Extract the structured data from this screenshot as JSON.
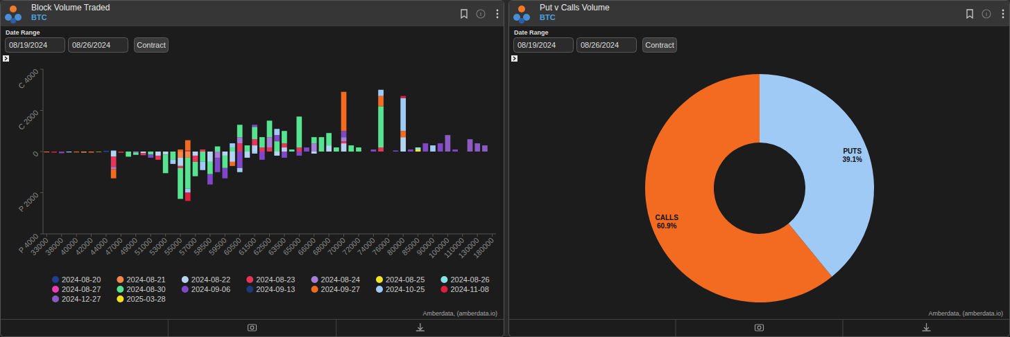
{
  "chart_data": [
    {
      "type": "bar",
      "title": "Block Volume Traded",
      "subtitle": "BTC",
      "annotations": [
        "Date Range",
        "08/19/2024",
        "08/26/2024",
        "Contract",
        "Amberdata, (amberdata.io)"
      ],
      "stacked": true,
      "grid": false,
      "legend": "bottom",
      "categories": [
        "33000",
        null,
        "38000",
        null,
        "40000",
        null,
        "42000",
        null,
        "44000",
        null,
        "47000",
        null,
        "49000",
        null,
        "51000",
        null,
        "53000",
        null,
        "55000",
        null,
        "57000",
        null,
        "58500",
        null,
        "59500",
        null,
        "60500",
        null,
        "61500",
        null,
        "62500",
        null,
        "63500",
        null,
        "65000",
        null,
        "66000",
        null,
        "68000",
        null,
        "70000",
        null,
        "72000",
        null,
        "74000",
        null,
        "76000",
        null,
        "80000",
        null,
        "85000",
        null,
        "90000",
        null,
        "100000",
        null,
        "110000",
        null,
        "130000",
        null,
        "180000"
      ],
      "ylim": [
        -4000,
        4000
      ],
      "yticks": [
        {
          "value": 4000,
          "label": "C 4000"
        },
        {
          "value": 2000,
          "label": "C 2000"
        },
        0,
        {
          "value": -2000,
          "label": "P 2000"
        },
        {
          "value": -4000,
          "label": "P 4000"
        }
      ],
      "series": [
        {
          "name": "2024-08-20",
          "color": "#1f3f8f",
          "values": [
            0,
            0,
            0,
            0,
            0,
            0,
            0,
            0,
            40,
            0,
            0,
            0,
            0,
            0,
            0,
            0,
            0,
            0,
            0,
            0,
            0,
            0,
            0,
            0,
            0,
            0,
            0,
            0,
            0,
            0,
            0,
            0,
            0,
            0,
            0,
            0,
            0,
            0,
            0,
            0,
            0,
            0,
            0,
            0,
            0,
            0,
            0,
            0,
            0,
            0,
            0,
            0,
            0,
            0,
            0,
            0,
            0,
            0,
            0,
            0,
            0
          ]
        },
        {
          "name": "2024-08-21",
          "color": "#f4874b",
          "values": [
            0,
            0,
            0,
            0,
            0,
            -50,
            0,
            0,
            0,
            0,
            0,
            0,
            0,
            0,
            0,
            0,
            0,
            0,
            -300,
            -300,
            0,
            0,
            0,
            0,
            0,
            0,
            0,
            0,
            0,
            0,
            0,
            0,
            0,
            0,
            0,
            0,
            0,
            0,
            0,
            0,
            0,
            0,
            0,
            0,
            0,
            0,
            0,
            0,
            0,
            0,
            0,
            0,
            0,
            0,
            0,
            0,
            0,
            0,
            0,
            0,
            0
          ]
        },
        {
          "name": "2024-08-22",
          "color": "#b7d3f2",
          "values": [
            0,
            0,
            0,
            0,
            0,
            0,
            0,
            0,
            0,
            -250,
            0,
            0,
            0,
            -80,
            0,
            -200,
            -150,
            0,
            -400,
            0,
            -200,
            0,
            -500,
            0,
            -200,
            -500,
            0,
            -300,
            300,
            0,
            0,
            -200,
            200,
            0,
            0,
            0,
            -100,
            0,
            300,
            0,
            400,
            0,
            0,
            0,
            0,
            0,
            0,
            0,
            700,
            0,
            0,
            0,
            0,
            0,
            0,
            0,
            0,
            0,
            0,
            0,
            0
          ]
        },
        {
          "name": "2024-08-23",
          "color": "#e5365a",
          "values": [
            0,
            0,
            0,
            0,
            0,
            0,
            0,
            0,
            0,
            -500,
            0,
            0,
            0,
            -100,
            0,
            -200,
            0,
            0,
            -100,
            50,
            -300,
            100,
            0,
            0,
            0,
            0,
            400,
            0,
            300,
            200,
            200,
            0,
            200,
            0,
            200,
            0,
            0,
            0,
            0,
            0,
            100,
            0,
            0,
            0,
            0,
            200,
            0,
            0,
            0,
            0,
            0,
            0,
            0,
            0,
            0,
            0,
            0,
            0,
            0,
            0,
            0
          ]
        },
        {
          "name": "2024-08-24",
          "color": "#a77fd6",
          "values": [
            0,
            0,
            0,
            0,
            0,
            0,
            0,
            0,
            0,
            -100,
            0,
            0,
            -60,
            0,
            0,
            0,
            0,
            0,
            0,
            0,
            0,
            0,
            0,
            -300,
            0,
            0,
            300,
            0,
            0,
            0,
            500,
            0,
            0,
            0,
            0,
            0,
            400,
            0,
            0,
            0,
            200,
            0,
            0,
            0,
            0,
            0,
            0,
            0,
            0,
            0,
            0,
            0,
            0,
            0,
            0,
            0,
            0,
            0,
            0,
            0,
            0
          ]
        },
        {
          "name": "2024-08-25",
          "color": "#f2e527",
          "values": [
            0,
            0,
            0,
            0,
            0,
            0,
            0,
            0,
            0,
            0,
            0,
            0,
            0,
            0,
            0,
            0,
            0,
            0,
            0,
            0,
            0,
            0,
            0,
            0,
            0,
            0,
            0,
            0,
            0,
            0,
            0,
            0,
            0,
            0,
            0,
            0,
            0,
            0,
            0,
            0,
            0,
            0,
            0,
            0,
            0,
            0,
            0,
            0,
            0,
            0,
            100,
            0,
            0,
            0,
            0,
            0,
            0,
            0,
            0,
            0,
            0
          ]
        },
        {
          "name": "2024-08-26",
          "color": "#86e3e8",
          "values": [
            0,
            0,
            0,
            0,
            0,
            0,
            0,
            0,
            0,
            0,
            0,
            0,
            0,
            0,
            0,
            0,
            0,
            0,
            0,
            0,
            0,
            0,
            0,
            0,
            0,
            0,
            0,
            0,
            0,
            0,
            0,
            0,
            0,
            0,
            0,
            0,
            0,
            0,
            0,
            0,
            0,
            0,
            0,
            0,
            0,
            0,
            0,
            0,
            0,
            0,
            100,
            0,
            0,
            0,
            0,
            0,
            0,
            0,
            0,
            0,
            0
          ]
        },
        {
          "name": "2024-08-27",
          "color": "#ea3fb5",
          "values": [
            0,
            0,
            -20,
            0,
            0,
            0,
            0,
            0,
            0,
            0,
            0,
            0,
            0,
            0,
            0,
            0,
            0,
            0,
            0,
            0,
            0,
            0,
            0,
            0,
            0,
            0,
            0,
            0,
            0,
            0,
            0,
            0,
            0,
            0,
            0,
            0,
            0,
            0,
            0,
            0,
            0,
            0,
            0,
            0,
            0,
            0,
            0,
            0,
            0,
            0,
            0,
            0,
            0,
            0,
            0,
            0,
            0,
            0,
            0,
            0,
            0
          ]
        },
        {
          "name": "2024-08-30",
          "color": "#57e38f",
          "values": [
            0,
            0,
            0,
            0,
            0,
            0,
            0,
            0,
            0,
            0,
            0,
            -250,
            -100,
            0,
            -150,
            0,
            -900,
            -400,
            -1500,
            -1500,
            -700,
            -500,
            -600,
            250,
            -600,
            200,
            600,
            300,
            600,
            500,
            800,
            500,
            600,
            100,
            1500,
            0,
            300,
            700,
            600,
            200,
            0,
            300,
            200,
            0,
            0,
            2000,
            0,
            0,
            0,
            0,
            0,
            0,
            0,
            0,
            0,
            0,
            0,
            0,
            0,
            0,
            0
          ]
        },
        {
          "name": "2024-09-06",
          "color": "#8048c8",
          "values": [
            0,
            0,
            -60,
            0,
            0,
            0,
            0,
            0,
            0,
            0,
            0,
            0,
            0,
            0,
            -150,
            0,
            0,
            0,
            0,
            0,
            0,
            0,
            -500,
            -700,
            -500,
            0,
            -800,
            0,
            100,
            -400,
            0,
            300,
            -300,
            0,
            -200,
            200,
            0,
            0,
            0,
            0,
            300,
            0,
            0,
            0,
            100,
            0,
            0,
            50,
            0,
            100,
            0,
            400,
            0,
            400,
            0,
            100,
            0,
            0,
            0,
            0,
            0
          ]
        },
        {
          "name": "2024-09-13",
          "color": "#1d3a78",
          "values": [
            0,
            0,
            0,
            0,
            0,
            0,
            0,
            0,
            -30,
            0,
            0,
            0,
            0,
            0,
            0,
            0,
            0,
            0,
            0,
            0,
            0,
            0,
            0,
            0,
            0,
            0,
            0,
            0,
            0,
            0,
            0,
            0,
            0,
            0,
            0,
            0,
            0,
            0,
            0,
            0,
            0,
            0,
            0,
            0,
            0,
            0,
            0,
            0,
            0,
            0,
            0,
            0,
            0,
            0,
            0,
            0,
            0,
            0,
            0,
            0,
            0
          ]
        },
        {
          "name": "2024-09-27",
          "color": "#f26b21",
          "values": [
            -40,
            0,
            0,
            0,
            -40,
            0,
            -50,
            0,
            0,
            -450,
            0,
            0,
            0,
            0,
            0,
            0,
            0,
            0,
            100,
            500,
            0,
            0,
            0,
            0,
            0,
            -200,
            0,
            0,
            0,
            0,
            0,
            0,
            0,
            0,
            0,
            0,
            0,
            0,
            0,
            0,
            1900,
            0,
            0,
            0,
            0,
            500,
            0,
            0,
            300,
            0,
            0,
            0,
            0,
            0,
            0,
            0,
            0,
            0,
            0,
            0,
            0
          ]
        },
        {
          "name": "2024-10-25",
          "color": "#9fcaf6",
          "values": [
            0,
            0,
            0,
            -40,
            0,
            0,
            0,
            0,
            0,
            50,
            0,
            0,
            0,
            0,
            0,
            0,
            0,
            -200,
            0,
            -200,
            0,
            -400,
            0,
            0,
            0,
            200,
            -200,
            0,
            -100,
            0,
            0,
            300,
            0,
            0,
            0,
            0,
            0,
            0,
            0,
            0,
            0,
            0,
            0,
            0,
            0,
            300,
            0,
            0,
            1600,
            0,
            0,
            0,
            300,
            0,
            0,
            0,
            0,
            0,
            0,
            0,
            0
          ]
        },
        {
          "name": "2024-11-08",
          "color": "#df1f3f",
          "values": [
            0,
            -50,
            0,
            0,
            0,
            0,
            0,
            0,
            0,
            0,
            -60,
            0,
            0,
            0,
            0,
            0,
            0,
            0,
            0,
            -400,
            0,
            0,
            0,
            0,
            0,
            0,
            0,
            0,
            0,
            0,
            0,
            0,
            0,
            0,
            0,
            0,
            0,
            0,
            0,
            0,
            0,
            0,
            0,
            0,
            0,
            0,
            0,
            0,
            100,
            0,
            0,
            0,
            0,
            0,
            0,
            0,
            0,
            0,
            0,
            0,
            0
          ]
        },
        {
          "name": "2024-12-27",
          "color": "#8a5bc2",
          "values": [
            0,
            0,
            0,
            0,
            0,
            0,
            0,
            0,
            0,
            0,
            0,
            0,
            0,
            0,
            0,
            0,
            0,
            0,
            0,
            0,
            0,
            0,
            0,
            0,
            0,
            0,
            0,
            0,
            0,
            0,
            0,
            0,
            0,
            0,
            0,
            0,
            0,
            0,
            0,
            0,
            0,
            0,
            0,
            0,
            0,
            0,
            0,
            0,
            0,
            0,
            0,
            0,
            0,
            0,
            800,
            0,
            0,
            600,
            400,
            300,
            0
          ]
        },
        {
          "name": "2025-03-28",
          "color": "#f3e21b",
          "values": [
            0,
            0,
            0,
            0,
            0,
            0,
            0,
            -20,
            0,
            0,
            0,
            0,
            0,
            0,
            0,
            0,
            0,
            0,
            0,
            0,
            0,
            0,
            0,
            0,
            0,
            0,
            0,
            0,
            0,
            0,
            0,
            0,
            0,
            0,
            0,
            0,
            0,
            0,
            0,
            0,
            0,
            0,
            0,
            0,
            0,
            0,
            0,
            0,
            0,
            0,
            0,
            0,
            0,
            0,
            0,
            0,
            0,
            0,
            0,
            0,
            0
          ]
        }
      ]
    },
    {
      "type": "pie",
      "title": "Put v Calls Volume",
      "subtitle": "BTC",
      "annotations": [
        "Date Range",
        "08/19/2024",
        "08/26/2024",
        "Contract",
        "Amberdata, (amberdata.io)"
      ],
      "categories": [
        "CALLS",
        "PUTS"
      ],
      "values": [
        60.9,
        39.1
      ],
      "value_labels": [
        "60.9%",
        "39.1%"
      ],
      "colors": [
        "#f26b21",
        "#9fcaf6"
      ],
      "data_labels": true
    }
  ]
}
